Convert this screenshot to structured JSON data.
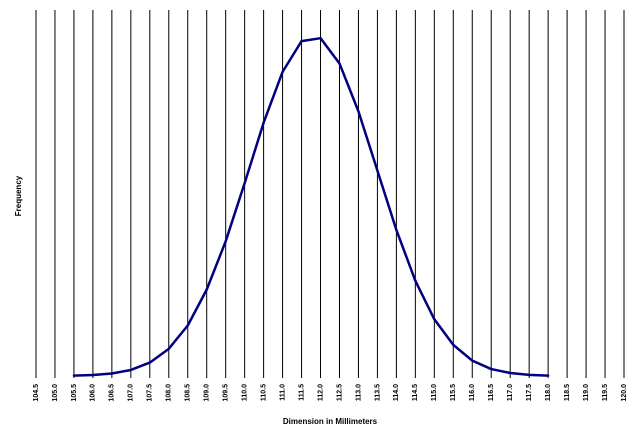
{
  "chart_data": {
    "type": "line",
    "x_label": "Dimension in Millimeters",
    "y_label": "Frequency",
    "x": [
      105.5,
      106.0,
      106.5,
      107.0,
      107.5,
      108.0,
      108.5,
      109.0,
      109.5,
      110.0,
      110.5,
      111.0,
      111.5,
      112.0,
      112.5,
      113.0,
      113.5,
      114.0,
      114.5,
      115.0,
      115.5,
      116.0,
      116.5,
      117.0,
      117.5,
      118.0
    ],
    "values": [
      0.09,
      0.26,
      0.68,
      1.65,
      3.66,
      7.42,
      13.8,
      23.6,
      36.8,
      52.7,
      69.2,
      83.1,
      91.5,
      92.3,
      85.4,
      72.3,
      56.1,
      39.9,
      26.0,
      15.5,
      8.5,
      4.2,
      1.9,
      0.82,
      0.32,
      0.11
    ],
    "color": "#000080",
    "xlim": [
      104.5,
      120.0
    ],
    "ylim": [
      0,
      100
    ],
    "xticks": [
      {
        "value": 104.5,
        "label": "104.5"
      },
      {
        "value": 105,
        "label": "105.0"
      },
      {
        "value": 105.5,
        "label": "105.5"
      },
      {
        "value": 106,
        "label": "106.0"
      },
      {
        "value": 106.5,
        "label": "106.5"
      },
      {
        "value": 107,
        "label": "107.0"
      },
      {
        "value": 107.5,
        "label": "107.5"
      },
      {
        "value": 108,
        "label": "108.0"
      },
      {
        "value": 108.5,
        "label": "108.5"
      },
      {
        "value": 109,
        "label": "109.0"
      },
      {
        "value": 109.5,
        "label": "109.5"
      },
      {
        "value": 110,
        "label": "110.0"
      },
      {
        "value": 110.5,
        "label": "110.5"
      },
      {
        "value": 111,
        "label": "111.0"
      },
      {
        "value": 111.5,
        "label": "111.5"
      },
      {
        "value": 112,
        "label": "112.0"
      },
      {
        "value": 112.5,
        "label": "112.5"
      },
      {
        "value": 113,
        "label": "113.0"
      },
      {
        "value": 113.5,
        "label": "113.5"
      },
      {
        "value": 114,
        "label": "114.0"
      },
      {
        "value": 114.5,
        "label": "114.5"
      },
      {
        "value": 115,
        "label": "115.0"
      },
      {
        "value": 115.5,
        "label": "115.5"
      },
      {
        "value": 116,
        "label": "116.0"
      },
      {
        "value": 116.5,
        "label": "116.5"
      },
      {
        "value": 117,
        "label": "117.0"
      },
      {
        "value": 117.5,
        "label": "117.5"
      },
      {
        "value": 118,
        "label": "118.0"
      },
      {
        "value": 118.5,
        "label": "118.5"
      },
      {
        "value": 119,
        "label": "119.0"
      },
      {
        "value": 119.5,
        "label": "119.5"
      },
      {
        "value": 120,
        "label": "120.0"
      }
    ],
    "grid": true
  }
}
